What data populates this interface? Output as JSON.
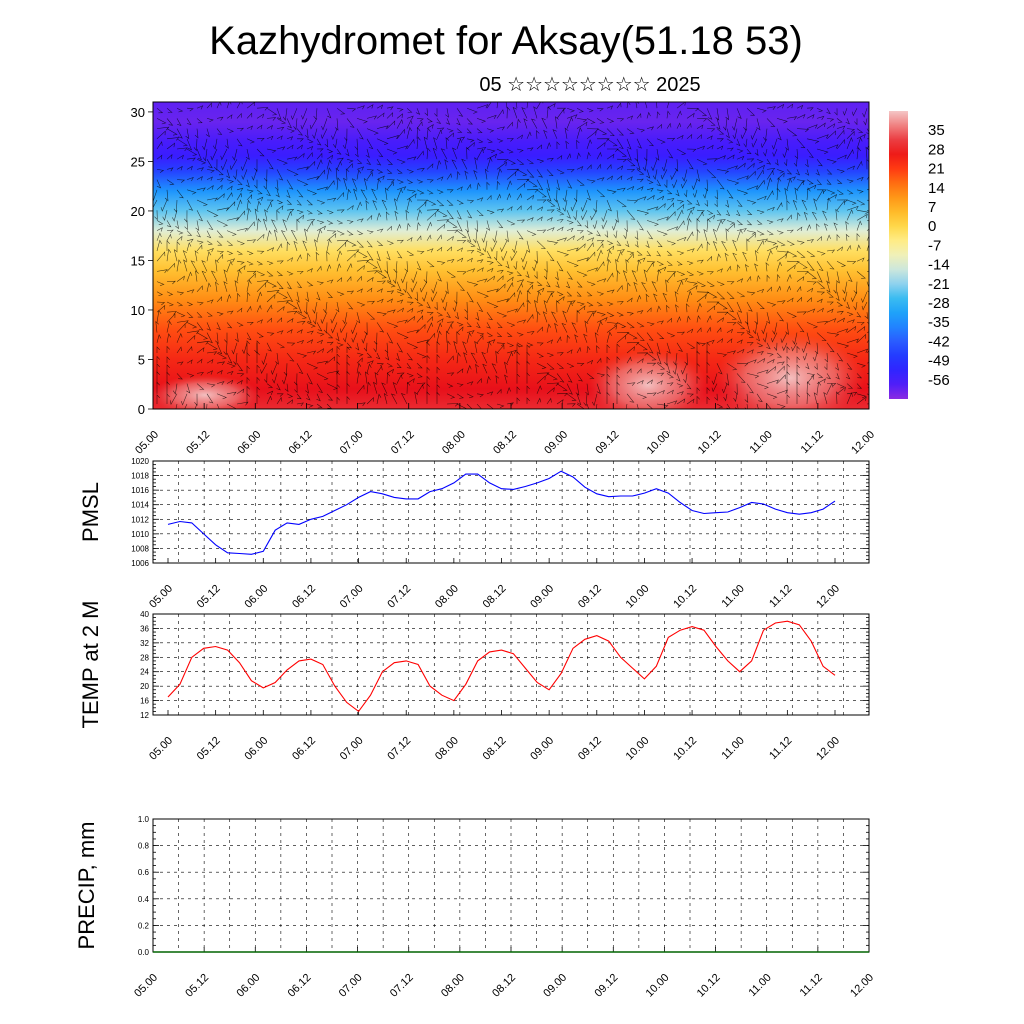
{
  "title": "Kazhydromet for Aksay(51.18 53)",
  "subtitle": "05 ☆☆☆☆☆☆☆☆ 2025",
  "time_labels": [
    "05.00",
    "05.12",
    "06.00",
    "06.12",
    "07.00",
    "07.12",
    "08.00",
    "08.12",
    "09.00",
    "09.12",
    "10.00",
    "10.12",
    "11.00",
    "11.12",
    "12.00"
  ],
  "colors": {
    "pmsl_line": "#0000ff",
    "temp_line": "#ff0000",
    "precip_line": "#006400",
    "barb": "#000000"
  },
  "chart_data": [
    {
      "type": "heatmap",
      "name": "cross-section",
      "title": "",
      "xlabel": "",
      "ylabel": "",
      "x": [
        "05.00",
        "05.12",
        "06.00",
        "06.12",
        "07.00",
        "07.12",
        "08.00",
        "08.12",
        "09.00",
        "09.12",
        "10.00",
        "10.12",
        "11.00",
        "11.12",
        "12.00"
      ],
      "ylim": [
        0,
        30
      ],
      "yticks": [
        0,
        5,
        10,
        15,
        20,
        25,
        30
      ],
      "colorbar": {
        "labels": [
          "35",
          "28",
          "21",
          "14",
          "7",
          "0",
          "-7",
          "-14",
          "-21",
          "-28",
          "-35",
          "-42",
          "-49",
          "-56"
        ],
        "range": [
          -63,
          42
        ]
      },
      "profile": [
        {
          "h": 0,
          "v": 30
        },
        {
          "h": 2,
          "v": 28
        },
        {
          "h": 5,
          "v": 24
        },
        {
          "h": 8,
          "v": 19
        },
        {
          "h": 11,
          "v": 12
        },
        {
          "h": 14,
          "v": 4
        },
        {
          "h": 16,
          "v": -2
        },
        {
          "h": 18,
          "v": -14
        },
        {
          "h": 20,
          "v": -24
        },
        {
          "h": 22,
          "v": -34
        },
        {
          "h": 24,
          "v": -46
        },
        {
          "h": 25.5,
          "v": -55
        },
        {
          "h": 27,
          "v": -57
        },
        {
          "h": 29,
          "v": -60
        },
        {
          "h": 31,
          "v": -59
        }
      ]
    },
    {
      "type": "line",
      "name": "pmsl",
      "ylabel": "PMSL",
      "ylim": [
        1006,
        1020
      ],
      "yticks": [
        1006,
        1008,
        1010,
        1012,
        1014,
        1016,
        1018,
        1020
      ],
      "x_hours": [
        0,
        3,
        6,
        9,
        12,
        15,
        18,
        21,
        24,
        27,
        30,
        33,
        36,
        39,
        42,
        45,
        48,
        51,
        54,
        57,
        60,
        63,
        66,
        69,
        72,
        75,
        78,
        81,
        84,
        87,
        90,
        93,
        96,
        99,
        102,
        105,
        108,
        111,
        114,
        117,
        120,
        123,
        126,
        129,
        132,
        135,
        138,
        141,
        144,
        147,
        150,
        153,
        156,
        159,
        162,
        165,
        168
      ],
      "values": [
        1011.3,
        1011.7,
        1011.5,
        1010.0,
        1008.5,
        1007.4,
        1007.3,
        1007.2,
        1007.6,
        1010.5,
        1011.5,
        1011.3,
        1012.0,
        1012.4,
        1013.2,
        1014.0,
        1015.0,
        1015.8,
        1015.5,
        1015.0,
        1014.8,
        1014.8,
        1015.8,
        1016.2,
        1017.0,
        1018.2,
        1018.2,
        1017.0,
        1016.2,
        1016.1,
        1016.5,
        1017.0,
        1017.6,
        1018.6,
        1017.8,
        1016.4,
        1015.5,
        1015.1,
        1015.2,
        1015.2,
        1015.6,
        1016.2,
        1015.6,
        1014.3,
        1013.2,
        1012.8,
        1012.9,
        1013.0,
        1013.6,
        1014.3,
        1014.1,
        1013.4,
        1012.9,
        1012.7,
        1012.9,
        1013.4,
        1014.5
      ]
    },
    {
      "type": "line",
      "name": "temp",
      "ylabel": "TEMP at 2 M",
      "ylim": [
        12,
        40
      ],
      "yticks": [
        12,
        16,
        20,
        24,
        28,
        32,
        36,
        40
      ],
      "x_hours": [
        0,
        3,
        6,
        9,
        12,
        15,
        18,
        21,
        24,
        27,
        30,
        33,
        36,
        39,
        42,
        45,
        48,
        51,
        54,
        57,
        60,
        63,
        66,
        69,
        72,
        75,
        78,
        81,
        84,
        87,
        90,
        93,
        96,
        99,
        102,
        105,
        108,
        111,
        114,
        117,
        120,
        123,
        126,
        129,
        132,
        135,
        138,
        141,
        144,
        147,
        150,
        153,
        156,
        159,
        162,
        165,
        168
      ],
      "values": [
        17.0,
        20.5,
        28.0,
        30.5,
        31.0,
        30.0,
        26.5,
        21.5,
        19.5,
        21.0,
        24.5,
        27.0,
        27.5,
        26.0,
        20.0,
        15.5,
        13.0,
        17.5,
        24.0,
        26.5,
        27.0,
        26.0,
        20.0,
        17.5,
        16.0,
        20.5,
        27.0,
        29.5,
        30.0,
        29.0,
        25.0,
        21.0,
        19.0,
        23.5,
        30.5,
        33.0,
        34.0,
        32.5,
        28.0,
        25.0,
        22.0,
        25.5,
        33.5,
        35.5,
        36.5,
        35.5,
        31.0,
        27.0,
        24.0,
        27.0,
        35.5,
        37.5,
        38.0,
        37.0,
        32.5,
        25.5,
        23.0
      ]
    },
    {
      "type": "line",
      "name": "precip",
      "ylabel": "PRECIP, mm",
      "ylim": [
        0,
        1
      ],
      "yticks": [
        "0.0",
        "0.2",
        "0.4",
        "0.6",
        "0.8",
        "1.0"
      ],
      "x_hours": [
        0,
        168
      ],
      "values": [
        0,
        0
      ]
    }
  ]
}
